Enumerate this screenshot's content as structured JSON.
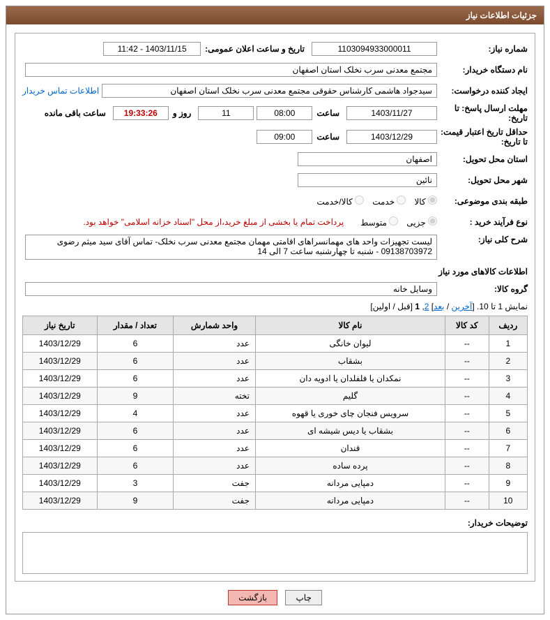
{
  "header": {
    "title": "جزئیات اطلاعات نیاز"
  },
  "labels": {
    "need_no": "شماره نیاز:",
    "announce_dt": "تاریخ و ساعت اعلان عمومی:",
    "buyer_org": "نام دستگاه خریدار:",
    "requester": "ایجاد کننده درخواست:",
    "buyer_contact": "اطلاعات تماس خریدار",
    "reply_deadline": "مهلت ارسال پاسخ: تا تاریخ:",
    "time": "ساعت",
    "days_and": "روز و",
    "time_remaining": "ساعت باقی مانده",
    "price_validity": "حداقل تاریخ اعتبار قیمت: تا تاریخ:",
    "delivery_province": "استان محل تحویل:",
    "delivery_city": "شهر محل تحویل:",
    "subject_class": "طبقه بندی موضوعی:",
    "purchase_type": "نوع فرآیند خرید :",
    "overall_desc": "شرح کلی نیاز:",
    "items_info": "اطلاعات کالاهای مورد نیاز",
    "item_group": "گروه کالا:",
    "buyer_notes": "توضیحات خریدار:"
  },
  "values": {
    "need_no": "1103094933000011",
    "announce_dt": "1403/11/15 - 11:42",
    "buyer_org": "مجتمع معدنی سرب نخلک استان اصفهان",
    "requester": "سیدجواد هاشمی کارشناس حقوقی مجتمع معدنی سرب نخلک استان اصفهان",
    "reply_deadline_date": "1403/11/27",
    "reply_deadline_time": "08:00",
    "days_left": "11",
    "timer": "19:33:26",
    "price_validity_date": "1403/12/29",
    "price_validity_time": "09:00",
    "delivery_province": "اصفهان",
    "delivery_city": "نائین",
    "overall_desc": "لیست تجهیزات واحد های مهمانسراهای اقامتی مهمان مجتمع معدنی سرب نخلک- تماس آقای سید میثم رضوی 09138703972 - شنبه تا چهارشنبه ساعت 7 الی 14",
    "item_group": "وسایل خانه"
  },
  "radios": {
    "subject": [
      {
        "label": "کالا",
        "checked": true
      },
      {
        "label": "خدمت",
        "checked": false
      },
      {
        "label": "کالا/خدمت",
        "checked": false
      }
    ],
    "purchase": [
      {
        "label": "جزیی",
        "checked": true
      },
      {
        "label": "متوسط",
        "checked": false
      }
    ],
    "purchase_note": "پرداخت تمام یا بخشی از مبلغ خرید،از محل \"اسناد خزانه اسلامی\" خواهد بود."
  },
  "pager": {
    "prefix": "نمایش 1 تا 10. [",
    "last": "آخرین",
    "next": "بعد",
    "sep": " / ",
    "close1": "] ",
    "p2": "2",
    "comma": ", ",
    "p1": "1",
    "tail": " [قبل / اولین]"
  },
  "table": {
    "headers": [
      "ردیف",
      "کد کالا",
      "نام کالا",
      "واحد شمارش",
      "تعداد / مقدار",
      "تاریخ نیاز"
    ],
    "rows": [
      [
        "1",
        "--",
        "لیوان خانگی",
        "عدد",
        "6",
        "1403/12/29"
      ],
      [
        "2",
        "--",
        "بشقاب",
        "عدد",
        "6",
        "1403/12/29"
      ],
      [
        "3",
        "--",
        "نمکدان یا فلفلدان یا ادویه دان",
        "عدد",
        "6",
        "1403/12/29"
      ],
      [
        "4",
        "--",
        "گلیم",
        "تخته",
        "9",
        "1403/12/29"
      ],
      [
        "5",
        "--",
        "سرویس فنجان چای خوری یا قهوه",
        "عدد",
        "4",
        "1403/12/29"
      ],
      [
        "6",
        "--",
        "بشقاب یا دیس شیشه ای",
        "عدد",
        "6",
        "1403/12/29"
      ],
      [
        "7",
        "--",
        "قندان",
        "عدد",
        "6",
        "1403/12/29"
      ],
      [
        "8",
        "--",
        "پرده ساده",
        "عدد",
        "6",
        "1403/12/29"
      ],
      [
        "9",
        "--",
        "دمپایی مردانه",
        "جفت",
        "3",
        "1403/12/29"
      ],
      [
        "10",
        "--",
        "دمپایی مردانه",
        "جفت",
        "9",
        "1403/12/29"
      ]
    ]
  },
  "buttons": {
    "print": "چاپ",
    "back": "بازگشت"
  },
  "colors": {
    "header_bg": "#8b5a3c",
    "link": "#0066cc",
    "danger": "#b00",
    "border": "#aaa"
  }
}
